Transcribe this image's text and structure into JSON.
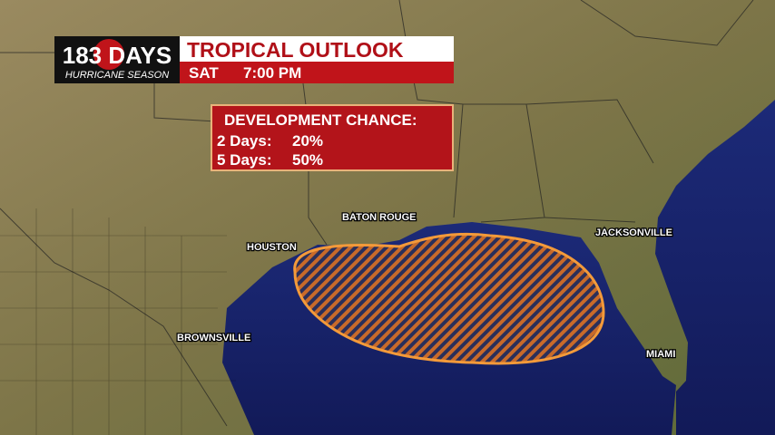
{
  "header": {
    "logo_number": "183 DAYS",
    "logo_subtitle": "HURRICANE SEASON",
    "title": "TROPICAL OUTLOOK",
    "day": "SAT",
    "time": "7:00 PM"
  },
  "outlook": {
    "heading": "DEVELOPMENT CHANCE:",
    "rows": [
      [
        "2 Days:",
        "20%"
      ],
      [
        "5 Days:",
        "50%"
      ]
    ]
  },
  "cities": [
    "BATON ROUGE",
    "HOUSTON",
    "JACKSONVILLE",
    "BROWNSVILLE",
    "MIAMI"
  ]
}
